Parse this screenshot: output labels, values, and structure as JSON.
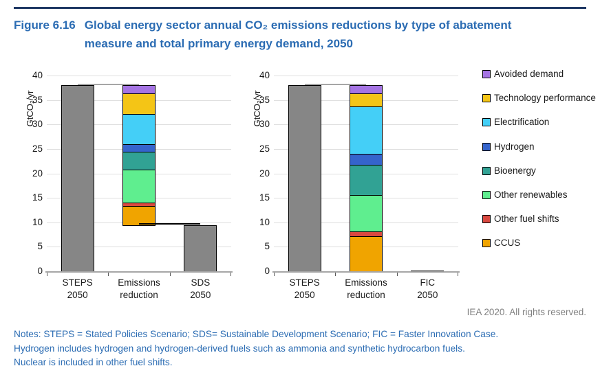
{
  "header": {
    "figure_label": "Figure 6.16",
    "title": "Global energy sector annual CO₂ emissions reductions by type of abatement measure and total primary energy demand, 2050"
  },
  "credit": "IEA 2020. All rights reserved.",
  "notes": [
    "Notes: STEPS = Stated Policies Scenario; SDS= Sustainable Development Scenario; FIC = Faster Innovation Case.",
    "Hydrogen includes hydrogen and hydrogen-derived fuels such as ammonia and synthetic hydrocarbon fuels.",
    "Nuclear is included in other fuel shifts."
  ],
  "colors": {
    "Total": "#868686",
    "CCUS": "#F0A400",
    "Other fuel shifts": "#D94840",
    "Other renewables": "#5FEE8F",
    "Bioenergy": "#31A294",
    "Hydrogen": "#3564CC",
    "Electrification": "#44CFF7",
    "Technology performance": "#F4C516",
    "Avoided demand": "#A574E3"
  },
  "legend": {
    "position": "right",
    "items": [
      {
        "label": "Avoided demand"
      },
      {
        "label": "Technology performance"
      },
      {
        "label": "Electrification"
      },
      {
        "label": "Hydrogen"
      },
      {
        "label": "Bioenergy"
      },
      {
        "label": "Other renewables"
      },
      {
        "label": "Other fuel shifts"
      },
      {
        "label": "CCUS"
      }
    ]
  },
  "chart_data": [
    {
      "type": "bar",
      "stacked": true,
      "waterfall": true,
      "ylabel": "GtCO₂/yr",
      "ylim": [
        0,
        40
      ],
      "ytick_step": 5,
      "grid": true,
      "categories": [
        "STEPS\n2050",
        "Emissions\nreduction",
        "SDS\n2050"
      ],
      "bars": [
        {
          "name": "STEPS 2050",
          "base": 0,
          "segments": [
            {
              "name": "Total",
              "value": 38.1
            }
          ]
        },
        {
          "name": "Emissions reduction",
          "base": 9.4,
          "segments": [
            {
              "name": "CCUS",
              "value": 4.0
            },
            {
              "name": "Other fuel shifts",
              "value": 0.7
            },
            {
              "name": "Other renewables",
              "value": 6.7
            },
            {
              "name": "Bioenergy",
              "value": 3.6
            },
            {
              "name": "Hydrogen",
              "value": 1.6
            },
            {
              "name": "Electrification",
              "value": 6.2
            },
            {
              "name": "Technology performance",
              "value": 4.1
            },
            {
              "name": "Avoided demand",
              "value": 1.8
            }
          ]
        },
        {
          "name": "SDS 2050",
          "base": 0,
          "segments": [
            {
              "name": "Total",
              "value": 9.4
            }
          ]
        }
      ],
      "connectors": [
        {
          "at": 38.1,
          "from": 0,
          "to": 1,
          "color": "#A6A6A6"
        },
        {
          "at": 9.5,
          "from": 1,
          "to": 2,
          "color": "#000000"
        }
      ]
    },
    {
      "type": "bar",
      "stacked": true,
      "waterfall": true,
      "ylabel": "GtCO₂/yr",
      "ylim": [
        0,
        40
      ],
      "ytick_step": 5,
      "grid": true,
      "categories": [
        "STEPS\n2050",
        "Emissions\nreduction",
        "FIC\n2050"
      ],
      "bars": [
        {
          "name": "STEPS 2050",
          "base": 0,
          "segments": [
            {
              "name": "Total",
              "value": 38.1
            }
          ]
        },
        {
          "name": "Emissions reduction",
          "base": 0,
          "segments": [
            {
              "name": "CCUS",
              "value": 7.1
            },
            {
              "name": "Other fuel shifts",
              "value": 1.0
            },
            {
              "name": "Other renewables",
              "value": 7.5
            },
            {
              "name": "Bioenergy",
              "value": 6.1
            },
            {
              "name": "Hydrogen",
              "value": 2.3
            },
            {
              "name": "Electrification",
              "value": 9.7
            },
            {
              "name": "Technology performance",
              "value": 2.6
            },
            {
              "name": "Avoided demand",
              "value": 1.8
            }
          ]
        },
        {
          "name": "FIC 2050",
          "base": 0,
          "segments": [
            {
              "name": "Total",
              "value": 0.2
            }
          ]
        }
      ],
      "connectors": [
        {
          "at": 38.1,
          "from": 0,
          "to": 1,
          "color": "#A6A6A6"
        }
      ]
    }
  ]
}
